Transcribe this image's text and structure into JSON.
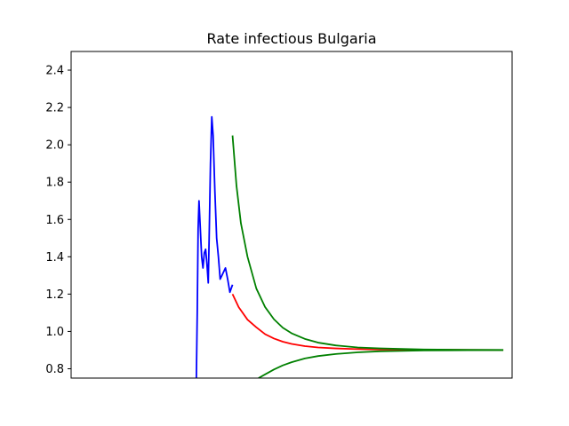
{
  "chart_data": {
    "type": "line",
    "title": "Rate infectious Bulgaria",
    "xlabel": "",
    "ylabel": "",
    "ylim": [
      0.75,
      2.5
    ],
    "xlim": [
      0,
      100
    ],
    "yticks": [
      0.8,
      1.0,
      1.2,
      1.4,
      1.6,
      1.8,
      2.0,
      2.2,
      2.4
    ],
    "ytick_labels": [
      "0.8",
      "1.0",
      "1.2",
      "1.4",
      "1.6",
      "1.8",
      "2.0",
      "2.2",
      "2.4"
    ],
    "x_ticks_visible": false,
    "grid": false,
    "legend": "none",
    "series": [
      {
        "color": "#0000ff",
        "points": [
          [
            28.4,
            0.75
          ],
          [
            28.6,
            1.1
          ],
          [
            28.8,
            1.55
          ],
          [
            29.0,
            1.7
          ],
          [
            29.3,
            1.55
          ],
          [
            29.6,
            1.4
          ],
          [
            29.9,
            1.34
          ],
          [
            30.2,
            1.42
          ],
          [
            30.5,
            1.44
          ],
          [
            30.8,
            1.36
          ],
          [
            31.1,
            1.26
          ],
          [
            31.3,
            1.5
          ],
          [
            31.6,
            1.9
          ],
          [
            31.9,
            2.15
          ],
          [
            32.2,
            2.05
          ],
          [
            32.6,
            1.75
          ],
          [
            33.0,
            1.5
          ],
          [
            33.4,
            1.4
          ],
          [
            33.8,
            1.28
          ],
          [
            34.2,
            1.3
          ],
          [
            34.6,
            1.32
          ],
          [
            35.0,
            1.34
          ],
          [
            35.5,
            1.28
          ],
          [
            36.0,
            1.21
          ],
          [
            36.6,
            1.25
          ]
        ]
      },
      {
        "color": "#ff0000",
        "points": [
          [
            36.6,
            1.2
          ],
          [
            38,
            1.13
          ],
          [
            40,
            1.063
          ],
          [
            42,
            1.022
          ],
          [
            44,
            0.985
          ],
          [
            46,
            0.962
          ],
          [
            48,
            0.945
          ],
          [
            50,
            0.933
          ],
          [
            53,
            0.921
          ],
          [
            56,
            0.914
          ],
          [
            60,
            0.909
          ],
          [
            65,
            0.905
          ],
          [
            70,
            0.903
          ],
          [
            80,
            0.9015
          ],
          [
            90,
            0.901
          ],
          [
            98,
            0.9005
          ]
        ]
      },
      {
        "color": "#008000",
        "points": [
          [
            36.6,
            2.05
          ],
          [
            37.5,
            1.78
          ],
          [
            38.5,
            1.58
          ],
          [
            40,
            1.4
          ],
          [
            42,
            1.23
          ],
          [
            44,
            1.13
          ],
          [
            46,
            1.065
          ],
          [
            48,
            1.02
          ],
          [
            50,
            0.99
          ],
          [
            53,
            0.96
          ],
          [
            56,
            0.94
          ],
          [
            60,
            0.925
          ],
          [
            65,
            0.914
          ],
          [
            70,
            0.909
          ],
          [
            80,
            0.9035
          ],
          [
            90,
            0.9015
          ],
          [
            98,
            0.9008
          ]
        ]
      },
      {
        "color": "#008000",
        "points": [
          [
            42.5,
            0.75
          ],
          [
            44,
            0.77
          ],
          [
            46,
            0.796
          ],
          [
            48,
            0.818
          ],
          [
            50,
            0.835
          ],
          [
            53,
            0.855
          ],
          [
            56,
            0.868
          ],
          [
            60,
            0.879
          ],
          [
            65,
            0.888
          ],
          [
            70,
            0.8935
          ],
          [
            80,
            0.898
          ],
          [
            90,
            0.8995
          ],
          [
            98,
            0.8998
          ]
        ]
      }
    ]
  }
}
